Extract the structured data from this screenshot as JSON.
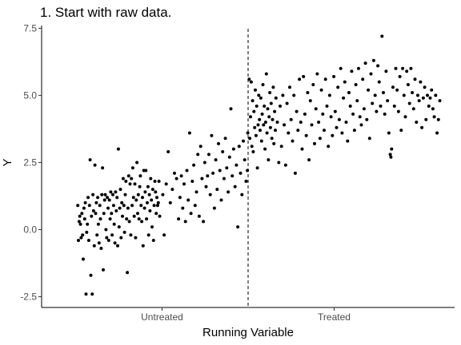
{
  "chart_data": {
    "type": "scatter",
    "title": "1. Start with raw data.",
    "xlabel": "Running Variable",
    "ylabel": "Y",
    "xlim": [
      -0.1,
      1.1
    ],
    "ylim": [
      -2.9,
      7.6
    ],
    "yticks": [
      -2.5,
      0.0,
      2.5,
      5.0,
      7.5
    ],
    "ytick_labels": [
      "-2.5",
      "0.0",
      "2.5",
      "5.0",
      "7.5"
    ],
    "x_category_labels": [
      {
        "label": "Untreated",
        "x": 0.25
      },
      {
        "label": "Treated",
        "x": 0.75
      }
    ],
    "cutoff": 0.5,
    "cutoff_style": "dashed",
    "grid": false,
    "background": "#ffffff",
    "point_color": "#000000",
    "points": [
      [
        0.005,
        0.9
      ],
      [
        0.007,
        -0.4
      ],
      [
        0.009,
        0.3
      ],
      [
        0.011,
        0.5
      ],
      [
        0.013,
        0.2
      ],
      [
        0.015,
        -0.3
      ],
      [
        0.017,
        0.6
      ],
      [
        0.019,
        -0.2
      ],
      [
        0.021,
        -1.1
      ],
      [
        0.023,
        0.8
      ],
      [
        0.025,
        0.4
      ],
      [
        0.027,
        1.0
      ],
      [
        0.029,
        -2.4
      ],
      [
        0.031,
        -0.1
      ],
      [
        0.033,
        0.2
      ],
      [
        0.035,
        1.2
      ],
      [
        0.037,
        -0.4
      ],
      [
        0.039,
        0.9
      ],
      [
        0.041,
        2.6
      ],
      [
        0.043,
        -1.7
      ],
      [
        0.045,
        0.5
      ],
      [
        0.047,
        -2.4
      ],
      [
        0.049,
        1.3
      ],
      [
        0.051,
        0.7
      ],
      [
        0.053,
        -0.6
      ],
      [
        0.055,
        2.4
      ],
      [
        0.057,
        0.6
      ],
      [
        0.059,
        1.0
      ],
      [
        0.061,
        -0.2
      ],
      [
        0.063,
        1.2
      ],
      [
        0.065,
        0.2
      ],
      [
        0.067,
        -0.5
      ],
      [
        0.069,
        0.9
      ],
      [
        0.071,
        0.4
      ],
      [
        0.073,
        -0.7
      ],
      [
        0.075,
        1.3
      ],
      [
        0.077,
        2.3
      ],
      [
        0.079,
        -1.5
      ],
      [
        0.081,
        0.6
      ],
      [
        0.083,
        1.1
      ],
      [
        0.085,
        1.3
      ],
      [
        0.087,
        0.0
      ],
      [
        0.089,
        -0.3
      ],
      [
        0.091,
        1.2
      ],
      [
        0.093,
        0.8
      ],
      [
        0.095,
        -0.4
      ],
      [
        0.097,
        1.1
      ],
      [
        0.099,
        0.4
      ],
      [
        0.101,
        1.4
      ],
      [
        0.103,
        0.6
      ],
      [
        0.105,
        -0.2
      ],
      [
        0.107,
        1.3
      ],
      [
        0.109,
        0.9
      ],
      [
        0.111,
        0.2
      ],
      [
        0.113,
        -0.5
      ],
      [
        0.115,
        1.4
      ],
      [
        0.117,
        0.7
      ],
      [
        0.119,
        1.2
      ],
      [
        0.121,
        -0.6
      ],
      [
        0.123,
        3.0
      ],
      [
        0.125,
        0.1
      ],
      [
        0.127,
        0.8
      ],
      [
        0.129,
        1.5
      ],
      [
        0.131,
        -0.3
      ],
      [
        0.133,
        1.0
      ],
      [
        0.135,
        0.5
      ],
      [
        0.137,
        1.9
      ],
      [
        0.139,
        0.9
      ],
      [
        0.141,
        -0.1
      ],
      [
        0.143,
        1.3
      ],
      [
        0.145,
        1.8
      ],
      [
        0.147,
        0.4
      ],
      [
        0.149,
        -1.6
      ],
      [
        0.151,
        0.8
      ],
      [
        0.153,
        2.0
      ],
      [
        0.155,
        0.3
      ],
      [
        0.157,
        1.7
      ],
      [
        0.159,
        -0.2
      ],
      [
        0.161,
        1.9
      ],
      [
        0.163,
        0.9
      ],
      [
        0.165,
        2.3
      ],
      [
        0.167,
        1.2
      ],
      [
        0.169,
        0.5
      ],
      [
        0.171,
        1.7
      ],
      [
        0.173,
        -0.3
      ],
      [
        0.175,
        1.1
      ],
      [
        0.177,
        2.5
      ],
      [
        0.179,
        0.6
      ],
      [
        0.181,
        1.3
      ],
      [
        0.183,
        0.4
      ],
      [
        0.185,
        1.6
      ],
      [
        0.187,
        2.0
      ],
      [
        0.189,
        0.9
      ],
      [
        0.191,
        0.3
      ],
      [
        0.193,
        1.2
      ],
      [
        0.195,
        -0.6
      ],
      [
        0.197,
        2.2
      ],
      [
        0.199,
        0.8
      ],
      [
        0.201,
        1.4
      ],
      [
        0.203,
        2.2
      ],
      [
        0.205,
        0.4
      ],
      [
        0.207,
        1.0
      ],
      [
        0.209,
        1.6
      ],
      [
        0.211,
        -0.2
      ],
      [
        0.213,
        1.3
      ],
      [
        0.215,
        0.7
      ],
      [
        0.217,
        1.9
      ],
      [
        0.219,
        1.1
      ],
      [
        0.221,
        0.1
      ],
      [
        0.223,
        1.5
      ],
      [
        0.225,
        -0.4
      ],
      [
        0.227,
        0.9
      ],
      [
        0.229,
        1.8
      ],
      [
        0.231,
        1.4
      ],
      [
        0.233,
        0.6
      ],
      [
        0.235,
        1.2
      ],
      [
        0.237,
        0.9
      ],
      [
        0.239,
        1.0
      ],
      [
        0.241,
        1.8
      ],
      [
        0.243,
        0.5
      ],
      [
        0.252,
        1.3
      ],
      [
        0.256,
        -0.2
      ],
      [
        0.262,
        1.7
      ],
      [
        0.268,
        2.9
      ],
      [
        0.274,
        1.0
      ],
      [
        0.28,
        1.5
      ],
      [
        0.286,
        2.1
      ],
      [
        0.292,
        1.9
      ],
      [
        0.298,
        0.4
      ],
      [
        0.302,
        1.2
      ],
      [
        0.306,
        2.0
      ],
      [
        0.31,
        0.8
      ],
      [
        0.314,
        1.7
      ],
      [
        0.318,
        0.3
      ],
      [
        0.322,
        2.2
      ],
      [
        0.326,
        1.1
      ],
      [
        0.33,
        3.6
      ],
      [
        0.334,
        0.6
      ],
      [
        0.338,
        1.8
      ],
      [
        0.342,
        2.4
      ],
      [
        0.346,
        0.9
      ],
      [
        0.35,
        1.4
      ],
      [
        0.354,
        2.8
      ],
      [
        0.358,
        0.5
      ],
      [
        0.362,
        3.1
      ],
      [
        0.366,
        1.9
      ],
      [
        0.37,
        0.3
      ],
      [
        0.374,
        2.5
      ],
      [
        0.378,
        1.6
      ],
      [
        0.382,
        2.0
      ],
      [
        0.386,
        2.8
      ],
      [
        0.39,
        1.3
      ],
      [
        0.394,
        3.5
      ],
      [
        0.398,
        2.1
      ],
      [
        0.402,
        0.8
      ],
      [
        0.406,
        2.6
      ],
      [
        0.41,
        1.5
      ],
      [
        0.414,
        3.2
      ],
      [
        0.418,
        2.2
      ],
      [
        0.422,
        1.1
      ],
      [
        0.426,
        2.9
      ],
      [
        0.43,
        1.9
      ],
      [
        0.434,
        3.4
      ],
      [
        0.438,
        2.3
      ],
      [
        0.442,
        1.4
      ],
      [
        0.446,
        2.7
      ],
      [
        0.45,
        4.5
      ],
      [
        0.454,
        2.0
      ],
      [
        0.458,
        3.0
      ],
      [
        0.462,
        1.6
      ],
      [
        0.466,
        2.4
      ],
      [
        0.47,
        0.1
      ],
      [
        0.474,
        3.1
      ],
      [
        0.478,
        2.1
      ],
      [
        0.482,
        1.3
      ],
      [
        0.486,
        3.3
      ],
      [
        0.49,
        2.6
      ],
      [
        0.494,
        1.8
      ],
      [
        0.498,
        2.2
      ],
      [
        0.499,
        3.6
      ],
      [
        0.503,
        5.6
      ],
      [
        0.505,
        3.4
      ],
      [
        0.507,
        4.2
      ],
      [
        0.509,
        5.5
      ],
      [
        0.511,
        3.1
      ],
      [
        0.513,
        4.8
      ],
      [
        0.515,
        2.9
      ],
      [
        0.517,
        4.4
      ],
      [
        0.519,
        3.8
      ],
      [
        0.521,
        5.2
      ],
      [
        0.523,
        3.5
      ],
      [
        0.525,
        4.6
      ],
      [
        0.527,
        2.3
      ],
      [
        0.529,
        3.9
      ],
      [
        0.531,
        5.0
      ],
      [
        0.533,
        4.1
      ],
      [
        0.535,
        3.7
      ],
      [
        0.537,
        4.9
      ],
      [
        0.539,
        3.3
      ],
      [
        0.541,
        4.3
      ],
      [
        0.543,
        5.4
      ],
      [
        0.545,
        3.9
      ],
      [
        0.547,
        4.6
      ],
      [
        0.549,
        3.0
      ],
      [
        0.551,
        4.0
      ],
      [
        0.553,
        5.8
      ],
      [
        0.555,
        3.6
      ],
      [
        0.557,
        4.5
      ],
      [
        0.559,
        2.6
      ],
      [
        0.561,
        4.2
      ],
      [
        0.563,
        5.1
      ],
      [
        0.565,
        3.8
      ],
      [
        0.567,
        4.7
      ],
      [
        0.569,
        3.4
      ],
      [
        0.571,
        4.1
      ],
      [
        0.573,
        5.3
      ],
      [
        0.575,
        3.2
      ],
      [
        0.577,
        4.4
      ],
      [
        0.579,
        3.7
      ],
      [
        0.581,
        4.9
      ],
      [
        0.585,
        4.0
      ],
      [
        0.589,
        2.5
      ],
      [
        0.593,
        4.6
      ],
      [
        0.597,
        3.1
      ],
      [
        0.601,
        5.0
      ],
      [
        0.605,
        3.9
      ],
      [
        0.609,
        2.4
      ],
      [
        0.613,
        4.7
      ],
      [
        0.617,
        3.6
      ],
      [
        0.621,
        5.3
      ],
      [
        0.625,
        4.1
      ],
      [
        0.629,
        3.3
      ],
      [
        0.633,
        5.0
      ],
      [
        0.637,
        2.1
      ],
      [
        0.641,
        4.4
      ],
      [
        0.645,
        3.7
      ],
      [
        0.649,
        5.6
      ],
      [
        0.653,
        4.0
      ],
      [
        0.657,
        3.0
      ],
      [
        0.661,
        5.7
      ],
      [
        0.665,
        4.3
      ],
      [
        0.669,
        3.5
      ],
      [
        0.673,
        5.1
      ],
      [
        0.677,
        2.6
      ],
      [
        0.681,
        4.8
      ],
      [
        0.685,
        3.9
      ],
      [
        0.689,
        5.4
      ],
      [
        0.693,
        3.2
      ],
      [
        0.697,
        4.5
      ],
      [
        0.701,
        5.8
      ],
      [
        0.705,
        4.0
      ],
      [
        0.709,
        3.4
      ],
      [
        0.713,
        5.2
      ],
      [
        0.717,
        4.3
      ],
      [
        0.721,
        3.7
      ],
      [
        0.725,
        5.6
      ],
      [
        0.729,
        4.6
      ],
      [
        0.733,
        3.1
      ],
      [
        0.737,
        5.0
      ],
      [
        0.741,
        4.2
      ],
      [
        0.745,
        3.5
      ],
      [
        0.749,
        5.7
      ],
      [
        0.753,
        4.4
      ],
      [
        0.757,
        3.8
      ],
      [
        0.761,
        5.3
      ],
      [
        0.765,
        4.1
      ],
      [
        0.769,
        6.0
      ],
      [
        0.773,
        3.6
      ],
      [
        0.777,
        4.9
      ],
      [
        0.781,
        5.5
      ],
      [
        0.785,
        4.0
      ],
      [
        0.789,
        3.3
      ],
      [
        0.793,
        5.1
      ],
      [
        0.797,
        4.6
      ],
      [
        0.801,
        5.9
      ],
      [
        0.805,
        4.3
      ],
      [
        0.809,
        3.7
      ],
      [
        0.813,
        5.4
      ],
      [
        0.817,
        4.8
      ],
      [
        0.821,
        6.0
      ],
      [
        0.825,
        4.2
      ],
      [
        0.829,
        3.9
      ],
      [
        0.833,
        5.6
      ],
      [
        0.837,
        4.5
      ],
      [
        0.841,
        6.2
      ],
      [
        0.845,
        4.1
      ],
      [
        0.849,
        5.2
      ],
      [
        0.853,
        3.4
      ],
      [
        0.857,
        5.8
      ],
      [
        0.861,
        4.7
      ],
      [
        0.865,
        6.3
      ],
      [
        0.869,
        5.0
      ],
      [
        0.873,
        4.4
      ],
      [
        0.877,
        6.1
      ],
      [
        0.881,
        5.5
      ],
      [
        0.885,
        4.6
      ],
      [
        0.889,
        7.2
      ],
      [
        0.893,
        5.1
      ],
      [
        0.897,
        4.3
      ],
      [
        0.901,
        5.9
      ],
      [
        0.905,
        4.8
      ],
      [
        0.909,
        3.6
      ],
      [
        0.913,
        2.8
      ],
      [
        0.915,
        2.7
      ],
      [
        0.917,
        3.0
      ],
      [
        0.921,
        5.3
      ],
      [
        0.925,
        4.6
      ],
      [
        0.929,
        6.0
      ],
      [
        0.933,
        5.2
      ],
      [
        0.937,
        4.4
      ],
      [
        0.941,
        5.7
      ],
      [
        0.945,
        3.7
      ],
      [
        0.949,
        6.0
      ],
      [
        0.953,
        5.0
      ],
      [
        0.957,
        4.2
      ],
      [
        0.961,
        5.9
      ],
      [
        0.965,
        5.4
      ],
      [
        0.969,
        4.7
      ],
      [
        0.973,
        6.0
      ],
      [
        0.977,
        5.1
      ],
      [
        0.981,
        4.5
      ],
      [
        0.985,
        5.6
      ],
      [
        0.989,
        4.0
      ],
      [
        0.993,
        5.0
      ],
      [
        0.997,
        4.8
      ],
      [
        1.001,
        5.5
      ],
      [
        1.005,
        3.8
      ],
      [
        1.009,
        4.9
      ],
      [
        1.013,
        5.3
      ],
      [
        1.017,
        4.1
      ],
      [
        1.021,
        5.0
      ],
      [
        1.025,
        4.6
      ],
      [
        1.029,
        4.9
      ],
      [
        1.033,
        5.2
      ],
      [
        1.037,
        4.5
      ],
      [
        1.041,
        4.2
      ],
      [
        1.045,
        5.0
      ],
      [
        1.049,
        3.6
      ],
      [
        1.053,
        4.1
      ],
      [
        1.057,
        4.8
      ]
    ]
  }
}
